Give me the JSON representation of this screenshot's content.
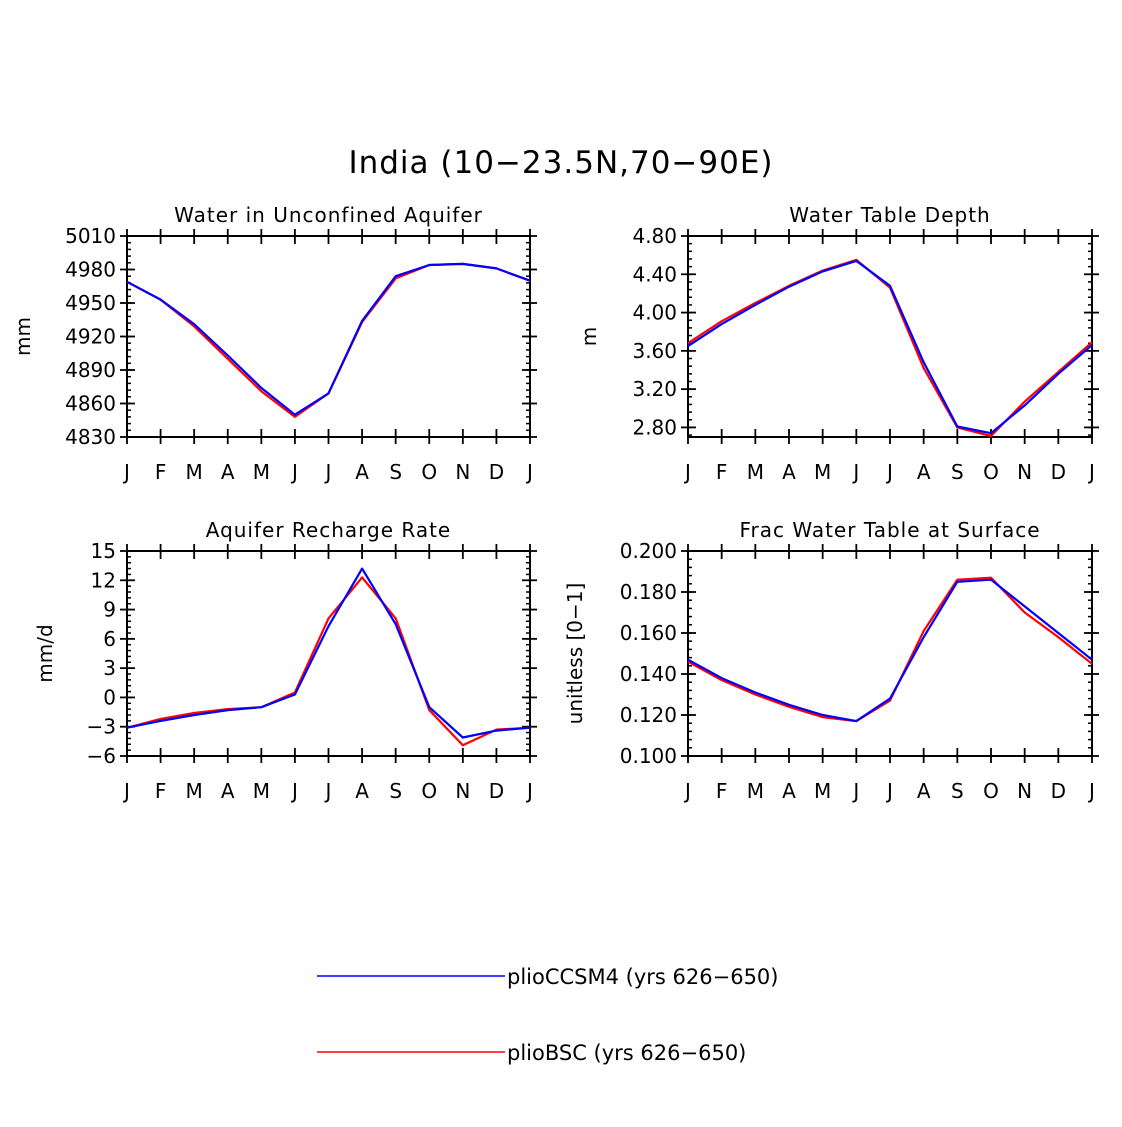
{
  "figure": {
    "title": "India (10−23.5N,70−90E)"
  },
  "colors": {
    "plioCCSM4": "#0000ff",
    "plioBSC": "#ff0000",
    "axes": "#000000"
  },
  "months": [
    "J",
    "F",
    "M",
    "A",
    "M",
    "J",
    "J",
    "A",
    "S",
    "O",
    "N",
    "D",
    "J"
  ],
  "legend": {
    "entries": [
      {
        "label": "plioCCSM4 (yrs 626−650)",
        "color": "#0000ff"
      },
      {
        "label": "plioBSC (yrs 626−650)",
        "color": "#ff0000"
      }
    ]
  },
  "chart_data": [
    {
      "type": "line",
      "title": "Water in Unconfined Aquifer",
      "ylabel": "mm",
      "ylim": [
        4830,
        5010
      ],
      "yticks": [
        "4830",
        "4860",
        "4890",
        "4920",
        "4950",
        "4980",
        "5010"
      ],
      "series": [
        {
          "name": "plioCCSM4 (yrs 626−650)",
          "values": [
            4969,
            4953,
            4931,
            4903,
            4874,
            4850,
            4869,
            4934,
            4974,
            4984,
            4985,
            4981,
            4970
          ]
        },
        {
          "name": "plioBSC (yrs 626−650)",
          "values": [
            4969,
            4953,
            4929,
            4900,
            4871,
            4848,
            4869,
            4933,
            4972,
            4984,
            4985,
            4981,
            4970
          ]
        }
      ]
    },
    {
      "type": "line",
      "title": "Water Table Depth",
      "ylabel": "m",
      "ylim": [
        2.7,
        4.8
      ],
      "yticks": [
        "2.80",
        "3.20",
        "3.60",
        "4.00",
        "4.40",
        "4.80"
      ],
      "series": [
        {
          "name": "plioCCSM4 (yrs 626−650)",
          "values": [
            3.65,
            3.88,
            4.08,
            4.27,
            4.43,
            4.54,
            4.28,
            3.48,
            2.81,
            2.74,
            3.03,
            3.36,
            3.66
          ]
        },
        {
          "name": "plioBSC (yrs 626−650)",
          "values": [
            3.68,
            3.91,
            4.1,
            4.28,
            4.44,
            4.55,
            4.26,
            3.42,
            2.8,
            2.71,
            3.07,
            3.38,
            3.69
          ]
        }
      ]
    },
    {
      "type": "line",
      "title": "Aquifer Recharge Rate",
      "ylabel": "mm/d",
      "ylim": [
        -6,
        15
      ],
      "yticks": [
        "−6",
        "−3",
        "0",
        "3",
        "6",
        "9",
        "12",
        "15"
      ],
      "series": [
        {
          "name": "plioCCSM4 (yrs 626−650)",
          "values": [
            -3.1,
            -2.4,
            -1.8,
            -1.3,
            -1.0,
            0.3,
            7.3,
            13.2,
            7.5,
            -1.0,
            -4.1,
            -3.4,
            -3.1
          ]
        },
        {
          "name": "plioBSC (yrs 626−650)",
          "values": [
            -3.1,
            -2.2,
            -1.6,
            -1.2,
            -1.0,
            0.5,
            8.1,
            12.3,
            8.1,
            -1.3,
            -4.9,
            -3.3,
            -3.1
          ]
        }
      ]
    },
    {
      "type": "line",
      "title": "Frac Water Table at Surface",
      "ylabel": "unitless [0−1]",
      "ylim": [
        0.1,
        0.2
      ],
      "yticks": [
        "0.100",
        "0.120",
        "0.140",
        "0.160",
        "0.180",
        "0.200"
      ],
      "series": [
        {
          "name": "plioCCSM4 (yrs 626−650)",
          "values": [
            0.147,
            0.138,
            0.131,
            0.125,
            0.12,
            0.117,
            0.128,
            0.158,
            0.185,
            0.186,
            0.173,
            0.16,
            0.147
          ]
        },
        {
          "name": "plioBSC (yrs 626−650)",
          "values": [
            0.146,
            0.137,
            0.13,
            0.124,
            0.119,
            0.117,
            0.127,
            0.161,
            0.186,
            0.187,
            0.17,
            0.158,
            0.145
          ]
        }
      ]
    }
  ]
}
